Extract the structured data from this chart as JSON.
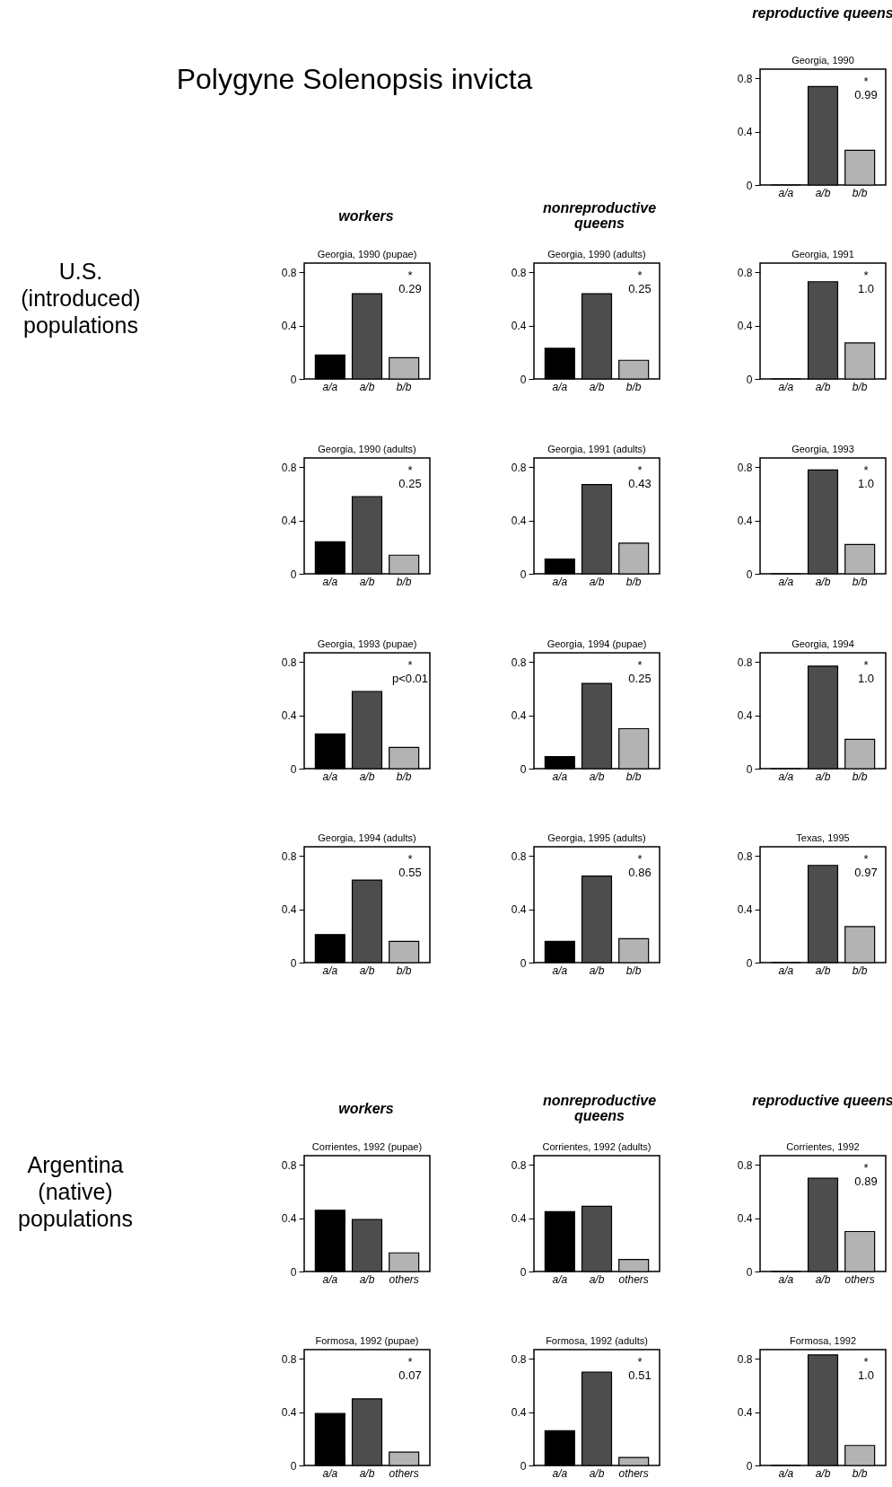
{
  "chart_data": [
    {
      "type": "other",
      "title": "Polygyne Solenopsis invicta",
      "annotations": [
        "reproductive queens",
        "workers",
        "nonreproductive queens",
        "U.S. (introduced) populations",
        "workers",
        "nonreproductive queens",
        "reproductive queens",
        "Argentina (native) populations"
      ]
    },
    {
      "type": "bar",
      "title": "Georgia, 1990",
      "categories": [
        "a/a",
        "a/b",
        "b/b"
      ],
      "values": [
        0,
        0.74,
        0.26
      ],
      "colors": [
        "#000000",
        "#4d4d4d",
        "#b3b3b3"
      ],
      "ylim": [
        0,
        0.87
      ],
      "yticks": [
        0,
        0.4,
        0.8
      ],
      "annotations": [
        "*",
        "0.99"
      ]
    },
    {
      "type": "bar",
      "title": "Georgia, 1990 (pupae)",
      "categories": [
        "a/a",
        "a/b",
        "b/b"
      ],
      "values": [
        0.18,
        0.64,
        0.16
      ],
      "colors": [
        "#000000",
        "#4d4d4d",
        "#b3b3b3"
      ],
      "ylim": [
        0,
        0.87
      ],
      "yticks": [
        0,
        0.4,
        0.8
      ],
      "annotations": [
        "*",
        "0.29"
      ]
    },
    {
      "type": "bar",
      "title": "Georgia, 1990 (adults)",
      "categories": [
        "a/a",
        "a/b",
        "b/b"
      ],
      "values": [
        0.23,
        0.64,
        0.14
      ],
      "colors": [
        "#000000",
        "#4d4d4d",
        "#b3b3b3"
      ],
      "ylim": [
        0,
        0.87
      ],
      "yticks": [
        0,
        0.4,
        0.8
      ],
      "annotations": [
        "*",
        "0.25"
      ]
    },
    {
      "type": "bar",
      "title": "Georgia, 1991",
      "categories": [
        "a/a",
        "a/b",
        "b/b"
      ],
      "values": [
        0,
        0.73,
        0.27
      ],
      "colors": [
        "#000000",
        "#4d4d4d",
        "#b3b3b3"
      ],
      "ylim": [
        0,
        0.87
      ],
      "yticks": [
        0,
        0.4,
        0.8
      ],
      "annotations": [
        "*",
        "1.0"
      ]
    },
    {
      "type": "bar",
      "title": "Georgia, 1990 (adults)",
      "categories": [
        "a/a",
        "a/b",
        "b/b"
      ],
      "values": [
        0.24,
        0.58,
        0.14
      ],
      "colors": [
        "#000000",
        "#4d4d4d",
        "#b3b3b3"
      ],
      "ylim": [
        0,
        0.87
      ],
      "yticks": [
        0,
        0.4,
        0.8
      ],
      "annotations": [
        "*",
        "0.25"
      ]
    },
    {
      "type": "bar",
      "title": "Georgia, 1991 (adults)",
      "categories": [
        "a/a",
        "a/b",
        "b/b"
      ],
      "values": [
        0.11,
        0.67,
        0.23
      ],
      "colors": [
        "#000000",
        "#4d4d4d",
        "#b3b3b3"
      ],
      "ylim": [
        0,
        0.87
      ],
      "yticks": [
        0,
        0.4,
        0.8
      ],
      "annotations": [
        "*",
        "0.43"
      ]
    },
    {
      "type": "bar",
      "title": "Georgia, 1993",
      "categories": [
        "a/a",
        "a/b",
        "b/b"
      ],
      "values": [
        0,
        0.78,
        0.22
      ],
      "colors": [
        "#000000",
        "#4d4d4d",
        "#b3b3b3"
      ],
      "ylim": [
        0,
        0.87
      ],
      "yticks": [
        0,
        0.4,
        0.8
      ],
      "annotations": [
        "*",
        "1.0"
      ]
    },
    {
      "type": "bar",
      "title": "Georgia, 1993 (pupae)",
      "categories": [
        "a/a",
        "a/b",
        "b/b"
      ],
      "values": [
        0.26,
        0.58,
        0.16
      ],
      "colors": [
        "#000000",
        "#4d4d4d",
        "#b3b3b3"
      ],
      "ylim": [
        0,
        0.87
      ],
      "yticks": [
        0,
        0.4,
        0.8
      ],
      "annotations": [
        "*",
        "p<0.01"
      ]
    },
    {
      "type": "bar",
      "title": "Georgia, 1994 (pupae)",
      "categories": [
        "a/a",
        "a/b",
        "b/b"
      ],
      "values": [
        0.09,
        0.64,
        0.3
      ],
      "colors": [
        "#000000",
        "#4d4d4d",
        "#b3b3b3"
      ],
      "ylim": [
        0,
        0.87
      ],
      "yticks": [
        0,
        0.4,
        0.8
      ],
      "annotations": [
        "*",
        "0.25"
      ]
    },
    {
      "type": "bar",
      "title": "Georgia, 1994",
      "categories": [
        "a/a",
        "a/b",
        "b/b"
      ],
      "values": [
        0,
        0.77,
        0.22
      ],
      "colors": [
        "#000000",
        "#4d4d4d",
        "#b3b3b3"
      ],
      "ylim": [
        0,
        0.87
      ],
      "yticks": [
        0,
        0.4,
        0.8
      ],
      "annotations": [
        "*",
        "1.0"
      ]
    },
    {
      "type": "bar",
      "title": "Georgia, 1994 (adults)",
      "categories": [
        "a/a",
        "a/b",
        "b/b"
      ],
      "values": [
        0.21,
        0.62,
        0.16
      ],
      "colors": [
        "#000000",
        "#4d4d4d",
        "#b3b3b3"
      ],
      "ylim": [
        0,
        0.87
      ],
      "yticks": [
        0,
        0.4,
        0.8
      ],
      "annotations": [
        "*",
        "0.55"
      ]
    },
    {
      "type": "bar",
      "title": "Georgia, 1995 (adults)",
      "categories": [
        "a/a",
        "a/b",
        "b/b"
      ],
      "values": [
        0.16,
        0.65,
        0.18
      ],
      "colors": [
        "#000000",
        "#4d4d4d",
        "#b3b3b3"
      ],
      "ylim": [
        0,
        0.87
      ],
      "yticks": [
        0,
        0.4,
        0.8
      ],
      "annotations": [
        "*",
        "0.86"
      ]
    },
    {
      "type": "bar",
      "title": "Texas, 1995",
      "categories": [
        "a/a",
        "a/b",
        "b/b"
      ],
      "values": [
        0,
        0.73,
        0.27
      ],
      "colors": [
        "#000000",
        "#4d4d4d",
        "#b3b3b3"
      ],
      "ylim": [
        0,
        0.87
      ],
      "yticks": [
        0,
        0.4,
        0.8
      ],
      "annotations": [
        "*",
        "0.97"
      ]
    },
    {
      "type": "bar",
      "title": "Corrientes, 1992 (pupae)",
      "categories": [
        "a/a",
        "a/b",
        "others"
      ],
      "values": [
        0.46,
        0.39,
        0.14
      ],
      "colors": [
        "#000000",
        "#4d4d4d",
        "#b3b3b3"
      ],
      "ylim": [
        0,
        0.87
      ],
      "yticks": [
        0,
        0.4,
        0.8
      ]
    },
    {
      "type": "bar",
      "title": "Corrientes, 1992 (adults)",
      "categories": [
        "a/a",
        "a/b",
        "others"
      ],
      "values": [
        0.45,
        0.49,
        0.09
      ],
      "colors": [
        "#000000",
        "#4d4d4d",
        "#b3b3b3"
      ],
      "ylim": [
        0,
        0.87
      ],
      "yticks": [
        0,
        0.4,
        0.8
      ]
    },
    {
      "type": "bar",
      "title": "Corrientes, 1992",
      "categories": [
        "a/a",
        "a/b",
        "others"
      ],
      "values": [
        0,
        0.7,
        0.3
      ],
      "colors": [
        "#000000",
        "#4d4d4d",
        "#b3b3b3"
      ],
      "ylim": [
        0,
        0.87
      ],
      "yticks": [
        0,
        0.4,
        0.8
      ],
      "annotations": [
        "*",
        "0.89"
      ]
    },
    {
      "type": "bar",
      "title": "Formosa, 1992 (pupae)",
      "categories": [
        "a/a",
        "a/b",
        "others"
      ],
      "values": [
        0.39,
        0.5,
        0.1
      ],
      "colors": [
        "#000000",
        "#4d4d4d",
        "#b3b3b3"
      ],
      "ylim": [
        0,
        0.87
      ],
      "yticks": [
        0,
        0.4,
        0.8
      ],
      "annotations": [
        "*",
        "0.07"
      ]
    },
    {
      "type": "bar",
      "title": "Formosa, 1992 (adults)",
      "categories": [
        "a/a",
        "a/b",
        "others"
      ],
      "values": [
        0.26,
        0.7,
        0.06
      ],
      "colors": [
        "#000000",
        "#4d4d4d",
        "#b3b3b3"
      ],
      "ylim": [
        0,
        0.87
      ],
      "yticks": [
        0,
        0.4,
        0.8
      ],
      "annotations": [
        "*",
        "0.51"
      ]
    },
    {
      "type": "bar",
      "title": "Formosa, 1992",
      "categories": [
        "a/a",
        "a/b",
        "b/b"
      ],
      "values": [
        0,
        0.83,
        0.15
      ],
      "colors": [
        "#000000",
        "#4d4d4d",
        "#b3b3b3"
      ],
      "ylim": [
        0,
        0.87
      ],
      "yticks": [
        0,
        0.4,
        0.8
      ],
      "annotations": [
        "*",
        "1.0"
      ]
    }
  ]
}
